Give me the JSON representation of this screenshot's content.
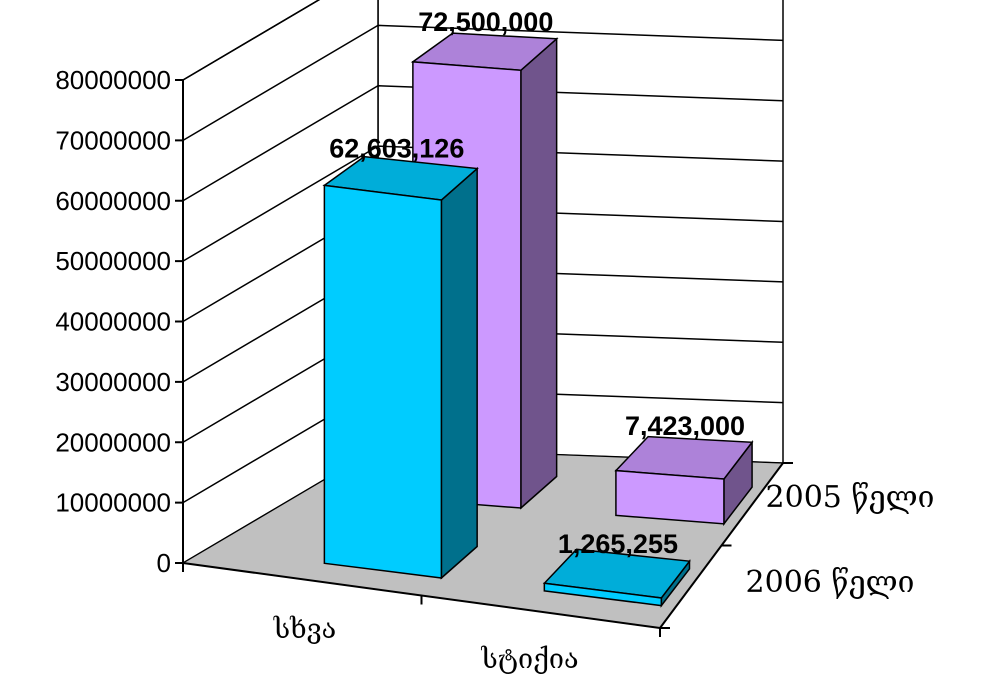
{
  "chart_data": {
    "type": "bar",
    "subtype": "3d-clustered-depth",
    "categories": [
      "სხვა",
      "სტიქია"
    ],
    "series": [
      {
        "name": "2005 წელი",
        "values": [
          72500000,
          7423000
        ],
        "labels": [
          "72,500,000",
          "7,423,000"
        ],
        "color": "#cc99ff"
      },
      {
        "name": "2006 წელი",
        "values": [
          62603126,
          1265255
        ],
        "labels": [
          "62,603,126",
          "1,265,255"
        ],
        "color": "#00ccff"
      }
    ],
    "ylim": [
      0,
      80000000
    ],
    "yticks": [
      "0",
      "10000000",
      "20000000",
      "30000000",
      "40000000",
      "50000000",
      "60000000",
      "70000000",
      "80000000"
    ],
    "grid": true,
    "floor_color": "#c0c0c0",
    "title": "",
    "xlabel": "",
    "ylabel": ""
  }
}
